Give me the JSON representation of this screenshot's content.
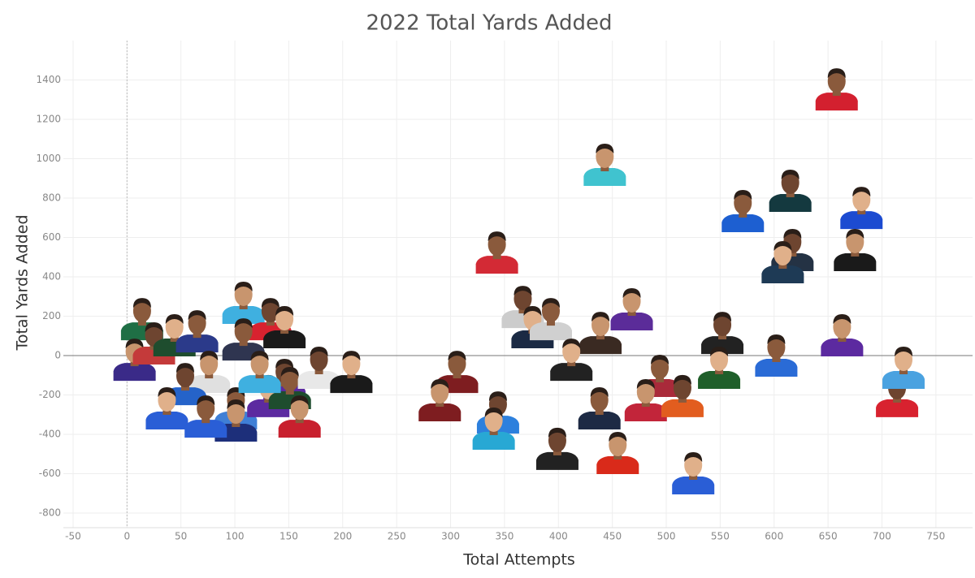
{
  "chart_data": {
    "type": "scatter",
    "title": "2022 Total Yards Added",
    "x_label": "Total Attempts",
    "y_label": "Total Yards Added",
    "xlim": [
      -59,
      784
    ],
    "ylim": [
      -874,
      1600
    ],
    "xticks": [
      -50,
      0,
      50,
      100,
      150,
      200,
      250,
      300,
      350,
      400,
      450,
      500,
      550,
      600,
      650,
      700,
      750
    ],
    "yticks": [
      -800,
      -600,
      -400,
      -200,
      0,
      200,
      400,
      600,
      800,
      1000,
      1200,
      1400
    ],
    "grid": true,
    "zero_line": true,
    "x": [
      658,
      443,
      615,
      681,
      571,
      675,
      617,
      608,
      343,
      468,
      367,
      376,
      393,
      439,
      552,
      549,
      602,
      663,
      714,
      720,
      494,
      481,
      515,
      412,
      438,
      455,
      399,
      525,
      306,
      290,
      344,
      340,
      14,
      7,
      25,
      44,
      65,
      108,
      133,
      146,
      108,
      76,
      54,
      37,
      101,
      101,
      146,
      131,
      151,
      160,
      178,
      208,
      73,
      123
    ],
    "y": [
      1344,
      961,
      829,
      742,
      726,
      528,
      528,
      466,
      515,
      227,
      239,
      136,
      177,
      107,
      107,
      -70,
      -8,
      95,
      -214,
      -70,
      -111,
      -235,
      -214,
      -29,
      -276,
      -503,
      -482,
      -606,
      -91,
      -235,
      -297,
      -379,
      177,
      -29,
      54,
      95,
      115,
      260,
      177,
      136,
      74,
      -91,
      -153,
      -276,
      -276,
      -338,
      -132,
      -214,
      -173,
      -318,
      -70,
      -91,
      -318,
      -91
    ],
    "colors": [
      "#d3202f",
      "#40c3cf",
      "#14393f",
      "#1c4bd1",
      "#1d5fd1",
      "#1a1a1a",
      "#243244",
      "#1e3a55",
      "#d32a35",
      "#5b2c99",
      "#cccccc",
      "#1b2a44",
      "#d0d0d0",
      "#3a2a22",
      "#222222",
      "#1f5f2a",
      "#2a6bd6",
      "#5c2aa0",
      "#d8222f",
      "#4aa2e0",
      "#a92a3a",
      "#c2253a",
      "#e25d1f",
      "#222222",
      "#1d2a44",
      "#d92a1a",
      "#222222",
      "#2a5ed6",
      "#7e1d20",
      "#7e1d20",
      "#2d80dd",
      "#28a8d4",
      "#1f6f45",
      "#3a2a88",
      "#c43a3a",
      "#1e4d2e",
      "#2b3a8a",
      "#3fb0e0",
      "#d8222f",
      "#1a1a1a",
      "#2f3550",
      "#e0e0e0",
      "#2563c9",
      "#2a5ed6",
      "#3f7fd6",
      "#1d2f7a",
      "#5c2aa0",
      "#5c2aa0",
      "#1e4d2e",
      "#c8202e",
      "#e8e8e8",
      "#1a1a1a",
      "#2a5ed6",
      "#3fb0e0"
    ]
  }
}
